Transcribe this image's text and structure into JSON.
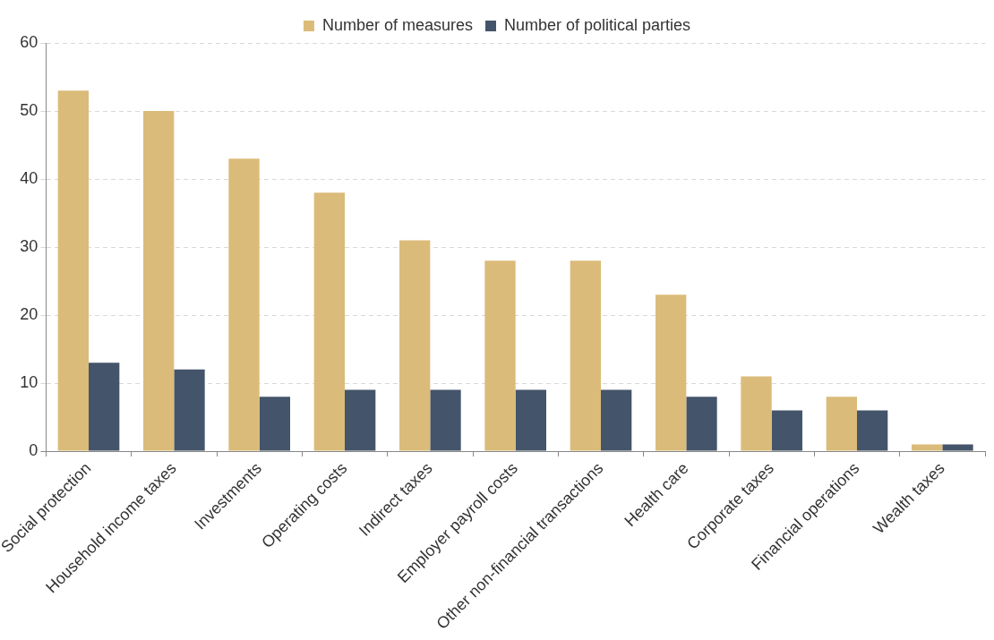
{
  "chart_data": {
    "type": "bar",
    "categories": [
      "Social protection",
      "Household income taxes",
      "Investments",
      "Operating costs",
      "Indirect taxes",
      "Employer payroll costs",
      "Other non-financial transactions",
      "Health care",
      "Corporate taxes",
      "Financial operations",
      "Wealth taxes"
    ],
    "series": [
      {
        "name": "Number of measures",
        "color": "#dbbb79",
        "values": [
          53,
          50,
          43,
          38,
          31,
          28,
          28,
          23,
          11,
          8,
          1
        ]
      },
      {
        "name": "Number of political parties",
        "color": "#44546a",
        "values": [
          13,
          12,
          8,
          9,
          9,
          9,
          9,
          8,
          6,
          6,
          1
        ]
      }
    ],
    "ylim": [
      0,
      60
    ],
    "yticks": [
      0,
      10,
      20,
      30,
      40,
      50,
      60
    ],
    "grid": "y",
    "legend": "top"
  }
}
